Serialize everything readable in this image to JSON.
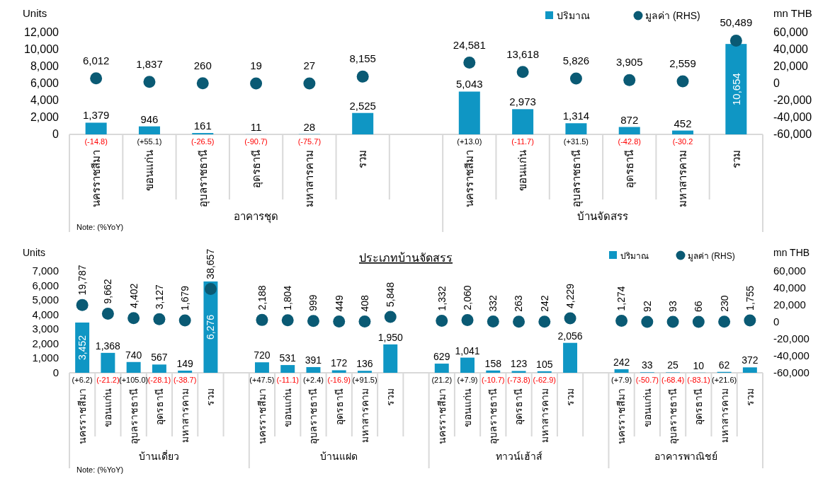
{
  "chart_data": [
    {
      "type": "bar",
      "ylabel": "Units",
      "y2label": "mn THB",
      "categories": [
        "นครราชสีมา",
        "ขอนแก่น",
        "อุบลราชธานี",
        "อุดรธานี",
        "มหาสารคาม",
        "รวม",
        null,
        "นครราชสีมา",
        "ขอนแก่น",
        "อุบลราชธานี",
        "อุดรธานี",
        "มหาสารคาม",
        "รวม"
      ],
      "series": [
        {
          "name": "ปริมาณ",
          "color": "#0f96c4",
          "values": [
            1379,
            946,
            161,
            11,
            28,
            2525,
            null,
            5043,
            2973,
            1314,
            872,
            452,
            10654
          ],
          "value_labels": [
            "1,379",
            "946",
            "161",
            "11",
            "28",
            "2,525",
            null,
            "5,043",
            "2,973",
            "1,314",
            "872",
            "452",
            "10,654"
          ]
        },
        {
          "name": "มูลค่า (RHS)",
          "type": "scatter",
          "axis": "y2",
          "color": "#0a5a74",
          "values": [
            6012,
            1837,
            260,
            19,
            27,
            8155,
            null,
            24581,
            13618,
            5826,
            3905,
            2559,
            50489
          ],
          "value_labels": [
            "6,012",
            "1,837",
            "260",
            "19",
            "27",
            "8,155",
            null,
            "24,581",
            "13,618",
            "5,826",
            "3,905",
            "2,559",
            "50,489"
          ]
        }
      ],
      "ylim": [
        0,
        12000
      ],
      "yticks": [
        0,
        {
          "value": 2000,
          "label": "2,000"
        },
        {
          "value": 4000,
          "label": "4,000"
        },
        {
          "value": 6000,
          "label": "6,000"
        },
        {
          "value": 8000,
          "label": "8,000"
        },
        {
          "value": 10000,
          "label": "10,000"
        },
        {
          "value": 12000,
          "label": "12,000"
        }
      ],
      "y2lim": [
        -60000,
        60000
      ],
      "y2ticks": [
        {
          "value": -60000,
          "label": "-60,000"
        },
        {
          "value": -40000,
          "label": "-40,000"
        },
        {
          "value": -20000,
          "label": "-20,000"
        },
        0,
        {
          "value": 20000,
          "label": "20,000"
        },
        {
          "value": 40000,
          "label": "40,000"
        },
        {
          "value": 60000,
          "label": "60,000"
        }
      ],
      "legend": "top right",
      "marker": "circle",
      "annotations": [
        "(-14.8)",
        "(+55.1)",
        "(-26.5)",
        "(-90.7)",
        "(-75.7)",
        "(+13.0)",
        "(-11.7)",
        "(+31.5)",
        "(-42.8)",
        "(-30.2",
        "อาคารชุด",
        "บ้านจัดสรร",
        "Note: (%YoY)"
      ]
    },
    {
      "type": "bar",
      "title": "ประเภทบ้านจัดสรร",
      "ylabel": "Units",
      "y2label": "mn THB",
      "categories": [
        "นครราชสีมา",
        "ขอนแก่น",
        "อุบลราชธานี",
        "อุดรธานี",
        "มหาสารคาม",
        "รวม",
        null,
        "นครราชสีมา",
        "ขอนแก่น",
        "อุบลราชธานี",
        "อุดรธานี",
        "มหาสารคาม",
        "รวม",
        null,
        "นครราชสีมา",
        "ขอนแก่น",
        "อุบลราชธานี",
        "อุดรธานี",
        "มหาสารคาม",
        "รวม",
        null,
        "นครราชสีมา",
        "ขอนแก่น",
        "อุบลราชธานี",
        "อุดรธานี",
        "มหาสารคาม",
        "รวม"
      ],
      "series": [
        {
          "name": "ปริมาณ",
          "color": "#0f96c4",
          "values": [
            3452,
            1368,
            740,
            567,
            149,
            6276,
            null,
            720,
            531,
            391,
            172,
            136,
            1950,
            null,
            629,
            1041,
            158,
            123,
            105,
            2056,
            null,
            242,
            33,
            25,
            10,
            62,
            372
          ],
          "value_labels": [
            "3,452",
            "1,368",
            "740",
            "567",
            "149",
            "6,276",
            null,
            "720",
            "531",
            "391",
            "172",
            "136",
            "1,950",
            null,
            "629",
            "1,041",
            "158",
            "123",
            "105",
            "2,056",
            null,
            "242",
            "33",
            "25",
            "10",
            "62",
            "372"
          ]
        },
        {
          "name": "มูลค่า (RHS)",
          "type": "scatter",
          "axis": "y2",
          "color": "#0a5a74",
          "values": [
            19787,
            9662,
            4402,
            3127,
            1679,
            38657,
            null,
            2188,
            1804,
            999,
            449,
            408,
            5848,
            null,
            1332,
            2060,
            332,
            263,
            242,
            4229,
            null,
            1274,
            92,
            93,
            66,
            230,
            1755
          ],
          "value_labels": [
            "19,787",
            "9,662",
            "4,402",
            "3,127",
            "1,679",
            "38,657",
            null,
            "2,188",
            "1,804",
            "999",
            "449",
            "408",
            "5,848",
            null,
            "1,332",
            "2,060",
            "332",
            "263",
            "242",
            "4,229",
            null,
            "1,274",
            "92",
            "93",
            "66",
            "230",
            "1,755"
          ]
        }
      ],
      "ylim": [
        0,
        7000
      ],
      "yticks": [
        0,
        {
          "value": 1000,
          "label": "1,000"
        },
        {
          "value": 2000,
          "label": "2,000"
        },
        {
          "value": 3000,
          "label": "3,000"
        },
        {
          "value": 4000,
          "label": "4,000"
        },
        {
          "value": 5000,
          "label": "5,000"
        },
        {
          "value": 6000,
          "label": "6,000"
        },
        {
          "value": 7000,
          "label": "7,000"
        }
      ],
      "y2lim": [
        -60000,
        60000
      ],
      "y2ticks": [
        {
          "value": -60000,
          "label": "-60,000"
        },
        {
          "value": -40000,
          "label": "-40,000"
        },
        {
          "value": -20000,
          "label": "-20,000"
        },
        0,
        {
          "value": 20000,
          "label": "20,000"
        },
        {
          "value": 40000,
          "label": "40,000"
        },
        {
          "value": 60000,
          "label": "60,000"
        }
      ],
      "legend": "top right",
      "marker": "circle",
      "annotations": [
        "(+6.2)",
        "(-21.2)",
        "(+105.0)",
        "(-28.1)",
        "(-38.7)",
        "(+47.5)",
        "(-11.1)",
        "(+2.4)",
        "(-16.9)",
        "(+91.5)",
        "(21.2)",
        "(+7.9)",
        "(-10.7)",
        "(-73.8)",
        "(-62.9)",
        "(+7.9)",
        "(-50.7)",
        "(-68.4)",
        "(-83.1)",
        "(+21.6)",
        "บ้านเดี่ยว",
        "บ้านแฝด",
        "ทาวน์เฮ้าส์",
        "อาคารพาณิชย์",
        "Note: (%YoY)"
      ]
    }
  ]
}
